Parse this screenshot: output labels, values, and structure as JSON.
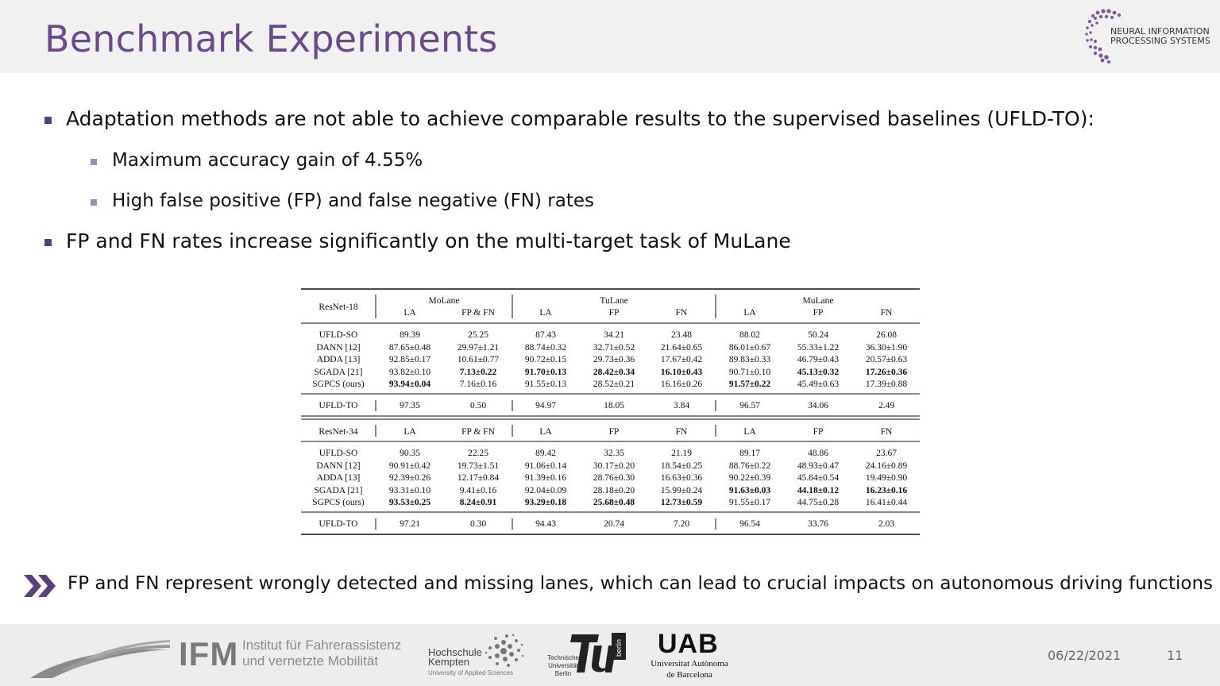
{
  "slide": {
    "title": "Benchmark Experiments",
    "bullets": [
      {
        "level": 1,
        "text": "Adaptation methods are not able to achieve comparable results to the supervised baselines (UFLD-TO):"
      },
      {
        "level": 2,
        "text": "Maximum accuracy gain of 4.55%"
      },
      {
        "level": 2,
        "text": "High false positive (FP) and false negative (FN) rates"
      },
      {
        "level": 1,
        "text": "FP and FN rates increase significantly on the multi-target task of MuLane"
      }
    ],
    "note": "FP and FN represent wrongly detected and missing lanes, which can lead to crucial impacts on autonomous driving functions",
    "date": "06/22/2021",
    "page_number": "11"
  },
  "logos": {
    "neurips": {
      "line1": "NEURAL INFORMATION",
      "line2": "PROCESSING SYSTEMS"
    },
    "ifm": {
      "abbr": "IFM",
      "line1": "Institut für Fahrerassistenz",
      "line2": "und vernetzte Mobilität"
    },
    "hochschule": {
      "line1": "Hochschule",
      "line2": "Kempten",
      "line3": "University of Applied Sciences"
    },
    "tu_berlin": {
      "line1": "Technische",
      "line2": "Universität",
      "line3": "Berlin",
      "vertical": "berlin"
    },
    "uab": {
      "abbr": "UAB",
      "line1": "Universitat Autònoma",
      "line2": "de Barcelona"
    }
  },
  "colors": {
    "title": "#6a4a8c",
    "bullet": "#5b3f7a",
    "sub_bullet": "#9c8bb4",
    "arrows": "#5b3f7a"
  },
  "table": {
    "groups": [
      "MoLane",
      "TuLane",
      "MuLane"
    ],
    "sections": [
      {
        "backbone": "ResNet-18",
        "columns": [
          "LA",
          "FP & FN",
          "LA",
          "FP",
          "FN",
          "LA",
          "FP",
          "FN"
        ],
        "rows": [
          {
            "method": "UFLD-SO",
            "cells": [
              "89.39",
              "25.25",
              "87.43",
              "34.21",
              "23.48",
              "88.02",
              "50.24",
              "26.08"
            ],
            "bold": []
          },
          {
            "method": "DANN [12]",
            "cells": [
              "87.65±0.48",
              "29.97±1.21",
              "88.74±0.32",
              "32.71±0.52",
              "21.64±0.65",
              "86.01±0.67",
              "55.33±1.22",
              "36.30±1.90"
            ],
            "bold": []
          },
          {
            "method": "ADDA [13]",
            "cells": [
              "92.85±0.17",
              "10.61±0.77",
              "90.72±0.15",
              "29.73±0.36",
              "17.67±0.42",
              "89.83±0.33",
              "46.79±0.43",
              "20.57±0.63"
            ],
            "bold": []
          },
          {
            "method": "SGADA [21]",
            "cells": [
              "93.82±0.10",
              "7.13±0.22",
              "91.70±0.13",
              "28.42±0.34",
              "16.10±0.43",
              "90.71±0.10",
              "45.13±0.32",
              "17.26±0.36"
            ],
            "bold": [
              1,
              2,
              3,
              4,
              6,
              7
            ]
          },
          {
            "method": "SGPCS (ours)",
            "cells": [
              "93.94±0.04",
              "7.16±0.16",
              "91.55±0.13",
              "28.52±0.21",
              "16.16±0.26",
              "91.57±0.22",
              "45.49±0.63",
              "17.39±0.88"
            ],
            "bold": [
              0,
              5
            ]
          }
        ],
        "baseline": {
          "method": "UFLD-TO",
          "cells": [
            "97.35",
            "0.50",
            "94.97",
            "18.05",
            "3.84",
            "96.57",
            "34.06",
            "2.49"
          ]
        }
      },
      {
        "backbone": "ResNet-34",
        "columns": [
          "LA",
          "FP & FN",
          "LA",
          "FP",
          "FN",
          "LA",
          "FP",
          "FN"
        ],
        "rows": [
          {
            "method": "UFLD-SO",
            "cells": [
              "90.35",
              "22.25",
              "89.42",
              "32.35",
              "21.19",
              "89.17",
              "48.86",
              "23.67"
            ],
            "bold": []
          },
          {
            "method": "DANN [12]",
            "cells": [
              "90.91±0.42",
              "19.73±1.51",
              "91.06±0.14",
              "30.17±0.20",
              "18.54±0.25",
              "88.76±0.22",
              "48.93±0.47",
              "24.16±0.89"
            ],
            "bold": []
          },
          {
            "method": "ADDA [13]",
            "cells": [
              "92.39±0.26",
              "12.17±0.84",
              "91.39±0.16",
              "28.76±0.30",
              "16.63±0.36",
              "90.22±0.39",
              "45.84±0.54",
              "19.49±0.90"
            ],
            "bold": []
          },
          {
            "method": "SGADA [21]",
            "cells": [
              "93.31±0.10",
              "9.41±0.16",
              "92.04±0.09",
              "28.18±0.20",
              "15.99±0.24",
              "91.63±0.03",
              "44.18±0.12",
              "16.23±0.16"
            ],
            "bold": [
              5,
              6,
              7
            ]
          },
          {
            "method": "SGPCS (ours)",
            "cells": [
              "93.53±0.25",
              "8.24±0.91",
              "93.29±0.18",
              "25.68±0.48",
              "12.73±0.59",
              "91.55±0.17",
              "44.75±0.28",
              "16.41±0.44"
            ],
            "bold": [
              0,
              1,
              2,
              3,
              4
            ]
          }
        ],
        "baseline": {
          "method": "UFLD-TO",
          "cells": [
            "97.21",
            "0.30",
            "94.43",
            "20.74",
            "7.20",
            "96.54",
            "33.76",
            "2.03"
          ]
        }
      }
    ]
  }
}
